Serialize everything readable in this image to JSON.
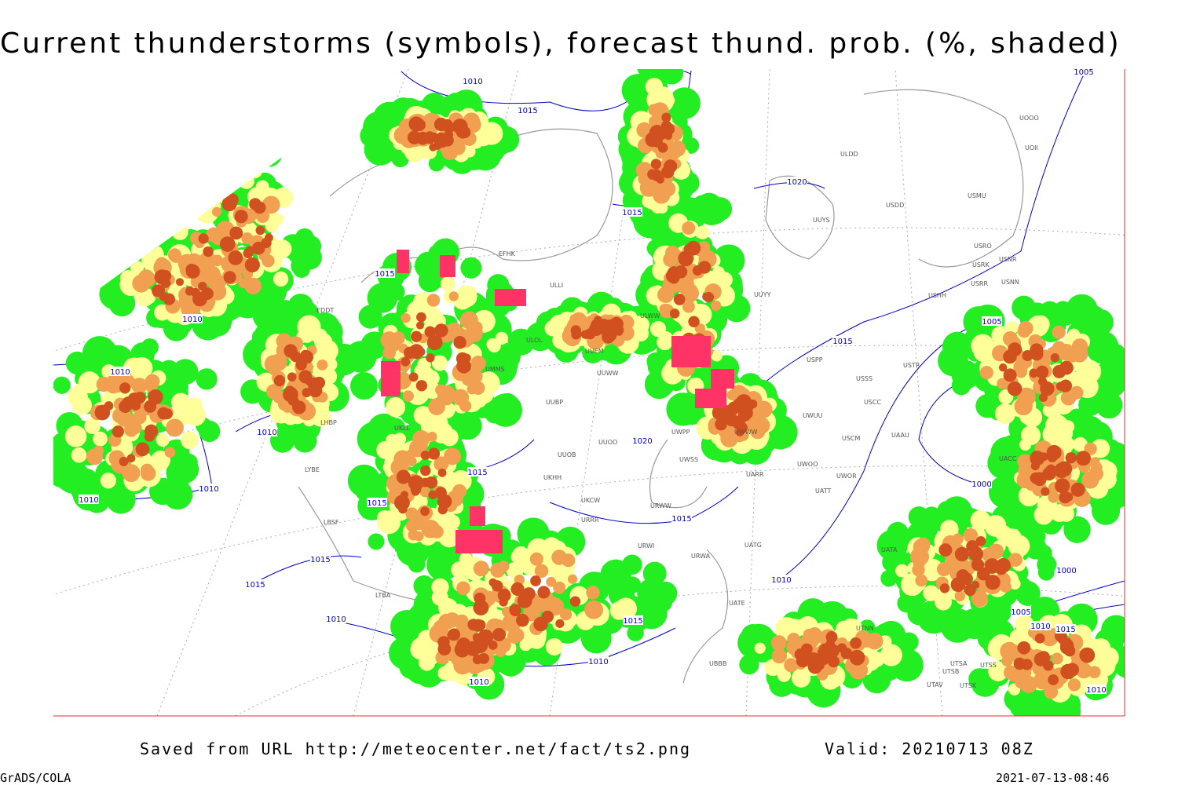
{
  "header": {
    "title": "Current thunderstorms (symbols), forecast thund. prob. (%, shaded)"
  },
  "map": {
    "isobar_labels": [
      "1010",
      "1015",
      "1015",
      "1020",
      "1015",
      "1010",
      "1010",
      "1010",
      "1010",
      "1010",
      "1015",
      "1015",
      "1015",
      "1015",
      "1010",
      "1015",
      "1020",
      "1015",
      "1005",
      "1000",
      "1000",
      "1010",
      "1005",
      "1010",
      "1015",
      "1015",
      "1010",
      "1010",
      "1010",
      "1005"
    ],
    "station_labels": [
      "ULDD",
      "UUYS",
      "USDD",
      "USMU",
      "UOOO",
      "UOII",
      "USRO",
      "USRK",
      "USNR",
      "USRR",
      "USNN",
      "USHH",
      "UUYY",
      "ULWW",
      "UUEM",
      "UUWW",
      "ULLI",
      "ULOL",
      "USSS",
      "USTR",
      "USPP",
      "USCC",
      "UWUU",
      "USCM",
      "UAAU",
      "UUOO",
      "UUOB",
      "UWPP",
      "UWWW",
      "UWSS",
      "UWOO",
      "UWOR",
      "UATT",
      "UARR",
      "UKHH",
      "UKCW",
      "URWW",
      "EFHK",
      "EDDT",
      "LHBP",
      "LYBE",
      "LBSF",
      "LTBA",
      "UUBP",
      "UMMS",
      "UKLL",
      "UATG",
      "URWA",
      "UATE",
      "URWI",
      "UACC",
      "UTSA",
      "UTSS",
      "UTSB",
      "UTAV",
      "UTSK",
      "UBBB",
      "UTNN",
      "UATA",
      "URRR"
    ]
  },
  "footer": {
    "source": "Saved from URL http://meteocenter.net/fact/ts2.png",
    "valid": "Valid: 20210713 08Z",
    "software": "GrADS/COLA",
    "timestamp": "2021-07-13-08:46"
  }
}
